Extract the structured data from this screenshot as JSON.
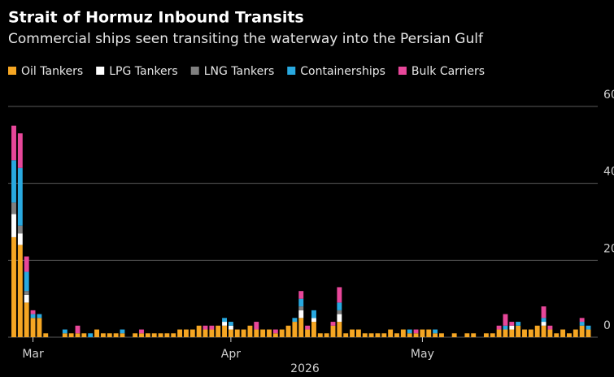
{
  "chart_data": {
    "type": "stacked_bar",
    "title": "Strait of Hormuz Inbound Transits",
    "subtitle": "Commercial ships seen transiting the waterway into the Persian Gulf",
    "x_label": "2026",
    "categories": [
      null,
      null,
      null,
      "Mar",
      null,
      null,
      null,
      null,
      null,
      null,
      null,
      null,
      null,
      null,
      null,
      null,
      null,
      null,
      null,
      null,
      null,
      null,
      null,
      null,
      null,
      null,
      null,
      null,
      null,
      null,
      null,
      null,
      null,
      null,
      "Apr",
      null,
      null,
      null,
      null,
      null,
      null,
      null,
      null,
      null,
      null,
      null,
      null,
      null,
      null,
      null,
      null,
      null,
      null,
      null,
      null,
      null,
      null,
      null,
      null,
      null,
      null,
      null,
      null,
      null,
      "May",
      null,
      null,
      null,
      null,
      null,
      null,
      null,
      null,
      null,
      null,
      null,
      null,
      null,
      null,
      null,
      null,
      null,
      null,
      null,
      null,
      null,
      null,
      null,
      null,
      null,
      null
    ],
    "series": [
      {
        "name": "Oil Tankers",
        "color": "#f5a623",
        "values": [
          26,
          24,
          9,
          5,
          5,
          1,
          0,
          0,
          1,
          1,
          1,
          1,
          0,
          2,
          1,
          1,
          1,
          1,
          0,
          1,
          1,
          1,
          1,
          1,
          1,
          1,
          2,
          2,
          2,
          3,
          2,
          2,
          3,
          3,
          2,
          2,
          2,
          3,
          2,
          2,
          2,
          1,
          2,
          3,
          4,
          5,
          2,
          4,
          1,
          1,
          3,
          4,
          1,
          2,
          2,
          1,
          1,
          1,
          1,
          2,
          1,
          2,
          1,
          1,
          2,
          2,
          1,
          1,
          0,
          1,
          0,
          1,
          1,
          0,
          1,
          1,
          2,
          2,
          2,
          3,
          2,
          2,
          3,
          3,
          2,
          1,
          2,
          1,
          2,
          3,
          2
        ]
      },
      {
        "name": "LPG Tankers",
        "color": "#ffffff",
        "values": [
          6,
          3,
          2,
          0,
          0,
          0,
          0,
          0,
          0,
          0,
          0,
          0,
          0,
          0,
          0,
          0,
          0,
          0,
          0,
          0,
          0,
          0,
          0,
          0,
          0,
          0,
          0,
          0,
          0,
          0,
          0,
          0,
          0,
          1,
          1,
          0,
          0,
          0,
          0,
          0,
          0,
          0,
          0,
          0,
          0,
          2,
          0,
          1,
          0,
          0,
          0,
          2,
          0,
          0,
          0,
          0,
          0,
          0,
          0,
          0,
          0,
          0,
          0,
          0,
          0,
          0,
          0,
          0,
          0,
          0,
          0,
          0,
          0,
          0,
          0,
          0,
          0,
          0,
          1,
          0,
          0,
          0,
          0,
          1,
          0,
          0,
          0,
          0,
          0,
          0,
          0
        ]
      },
      {
        "name": "LNG Tankers",
        "color": "#808080",
        "values": [
          3,
          2,
          1,
          0,
          0,
          0,
          0,
          0,
          0,
          0,
          0,
          0,
          0,
          0,
          0,
          0,
          0,
          0,
          0,
          0,
          0,
          0,
          0,
          0,
          0,
          0,
          0,
          0,
          0,
          0,
          0,
          0,
          0,
          0,
          0,
          0,
          0,
          0,
          0,
          0,
          0,
          0,
          0,
          0,
          0,
          1,
          0,
          0,
          0,
          0,
          0,
          1,
          0,
          0,
          0,
          0,
          0,
          0,
          0,
          0,
          0,
          0,
          0,
          0,
          0,
          0,
          0,
          0,
          0,
          0,
          0,
          0,
          0,
          0,
          0,
          0,
          0,
          0,
          0,
          0,
          0,
          0,
          0,
          0,
          0,
          0,
          0,
          0,
          0,
          0,
          0
        ]
      },
      {
        "name": "Containerships",
        "color": "#29a9e0",
        "values": [
          11,
          15,
          5,
          1,
          1,
          0,
          0,
          0,
          1,
          0,
          0,
          0,
          1,
          0,
          0,
          0,
          0,
          1,
          0,
          0,
          0,
          0,
          0,
          0,
          0,
          0,
          0,
          0,
          0,
          0,
          0,
          0,
          0,
          1,
          1,
          0,
          0,
          0,
          0,
          0,
          0,
          0,
          0,
          0,
          1,
          2,
          0,
          2,
          0,
          0,
          0,
          2,
          0,
          0,
          0,
          0,
          0,
          0,
          0,
          0,
          0,
          0,
          1,
          0,
          0,
          0,
          1,
          0,
          0,
          0,
          0,
          0,
          0,
          0,
          0,
          0,
          0,
          1,
          0,
          1,
          0,
          0,
          0,
          1,
          0,
          0,
          0,
          0,
          0,
          1,
          1
        ]
      },
      {
        "name": "Bulk Carriers",
        "color": "#e8479a",
        "values": [
          9,
          9,
          4,
          1,
          0,
          0,
          0,
          0,
          0,
          0,
          2,
          0,
          0,
          0,
          0,
          0,
          0,
          0,
          0,
          0,
          1,
          0,
          0,
          0,
          0,
          0,
          0,
          0,
          0,
          0,
          1,
          1,
          0,
          0,
          0,
          0,
          0,
          0,
          2,
          0,
          0,
          1,
          0,
          0,
          0,
          2,
          1,
          0,
          0,
          0,
          1,
          4,
          0,
          0,
          0,
          0,
          0,
          0,
          0,
          0,
          0,
          0,
          0,
          1,
          0,
          0,
          0,
          0,
          0,
          0,
          0,
          0,
          0,
          0,
          0,
          0,
          1,
          3,
          1,
          0,
          0,
          0,
          0,
          3,
          1,
          0,
          0,
          0,
          0,
          1,
          0
        ]
      }
    ],
    "ylim": [
      0,
      60
    ],
    "yticks": [
      0,
      20,
      40,
      60
    ],
    "grid": true,
    "y_axis_side": "right",
    "legend": "top"
  }
}
